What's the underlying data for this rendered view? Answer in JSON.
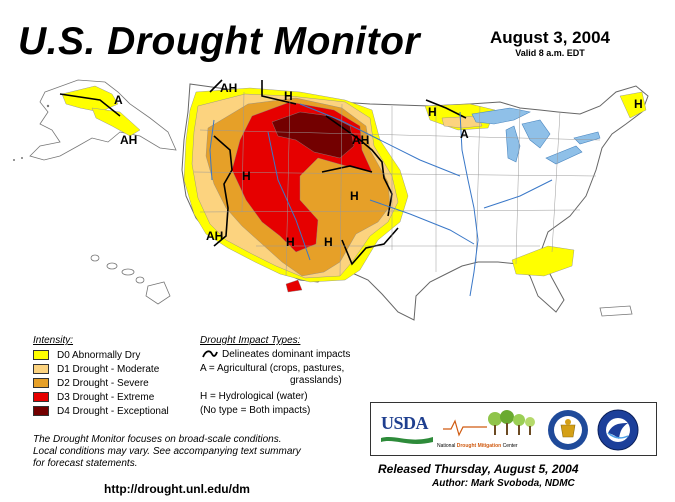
{
  "header": {
    "title": "U.S. Drought Monitor",
    "date": "August 3, 2004",
    "valid": "Valid 8 a.m. EDT"
  },
  "map": {
    "labels": [
      "A",
      "AH",
      "AH",
      "H",
      "AH",
      "H",
      "H",
      "AH",
      "H",
      "H",
      "H",
      "A",
      "H"
    ]
  },
  "intensity": {
    "title": "Intensity:",
    "items": [
      {
        "label": "D0 Abnormally Dry",
        "color": "#ffff00"
      },
      {
        "label": "D1 Drought - Moderate",
        "color": "#fcd37f"
      },
      {
        "label": "D2 Drought - Severe",
        "color": "#e6a028"
      },
      {
        "label": "D3 Drought - Extreme",
        "color": "#e60000"
      },
      {
        "label": "D4 Drought - Exceptional",
        "color": "#730000"
      }
    ]
  },
  "impacts": {
    "title": "Drought Impact Types:",
    "delineates": "Delineates dominant impacts",
    "ag_line1": "A = Agricultural (crops, pastures,",
    "ag_line2": "grasslands)",
    "hydro": "H = Hydrological (water)",
    "both": "(No type = Both impacts)"
  },
  "note": {
    "line1": "The Drought Monitor focuses on broad-scale conditions.",
    "line2": "Local conditions may vary.  See accompanying text summary",
    "line3": "for forecast statements."
  },
  "url": "http://drought.unl.edu/dm",
  "logos": {
    "usda": "USDA",
    "ndmc_prefix": "National",
    "ndmc_emph": "Drought Mitigation",
    "ndmc_suffix": "Center"
  },
  "released": "Released Thursday, August 5, 2004",
  "author": "Author: Mark Svoboda, NDMC"
}
